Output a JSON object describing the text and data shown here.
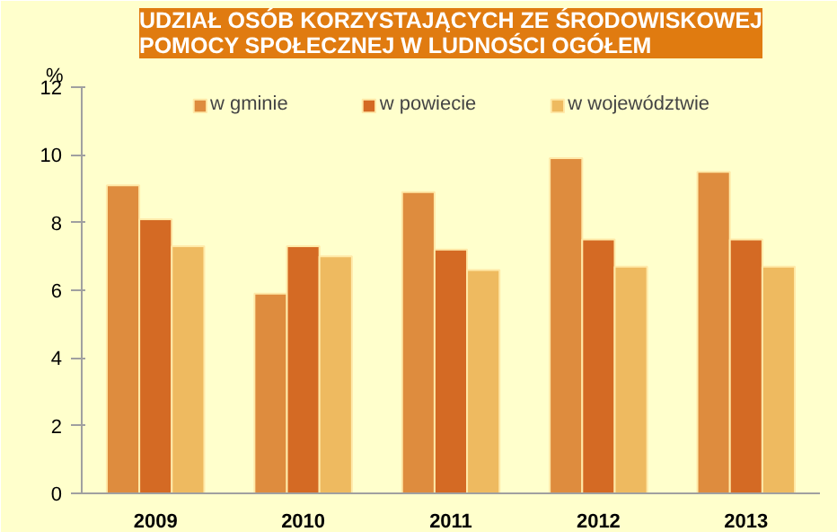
{
  "chart_data": {
    "type": "bar",
    "title": "UDZIAŁ OSÓB KORZYSTAJĄCYCH ZE ŚRODOWISKOWEJ\nPOMOCY SPOŁECZNEJ W LUDNOŚCI OGÓŁEM",
    "ylabel": "%",
    "categories": [
      "2009",
      "2010",
      "2011",
      "2012",
      "2013"
    ],
    "series": [
      {
        "name": "w gminie",
        "color": "#de8c3e",
        "values": [
          9.1,
          5.9,
          8.9,
          9.9,
          9.5
        ]
      },
      {
        "name": "w powiecie",
        "color": "#d46a24",
        "values": [
          8.1,
          7.3,
          7.2,
          7.5,
          7.5
        ]
      },
      {
        "name": "w województwie",
        "color": "#eeba60",
        "values": [
          7.3,
          7.0,
          6.6,
          6.7,
          6.7
        ]
      }
    ],
    "ylim": [
      0,
      12
    ],
    "yticks": [
      0,
      2,
      4,
      6,
      8,
      10,
      12
    ],
    "grid": false,
    "legend": "top"
  }
}
